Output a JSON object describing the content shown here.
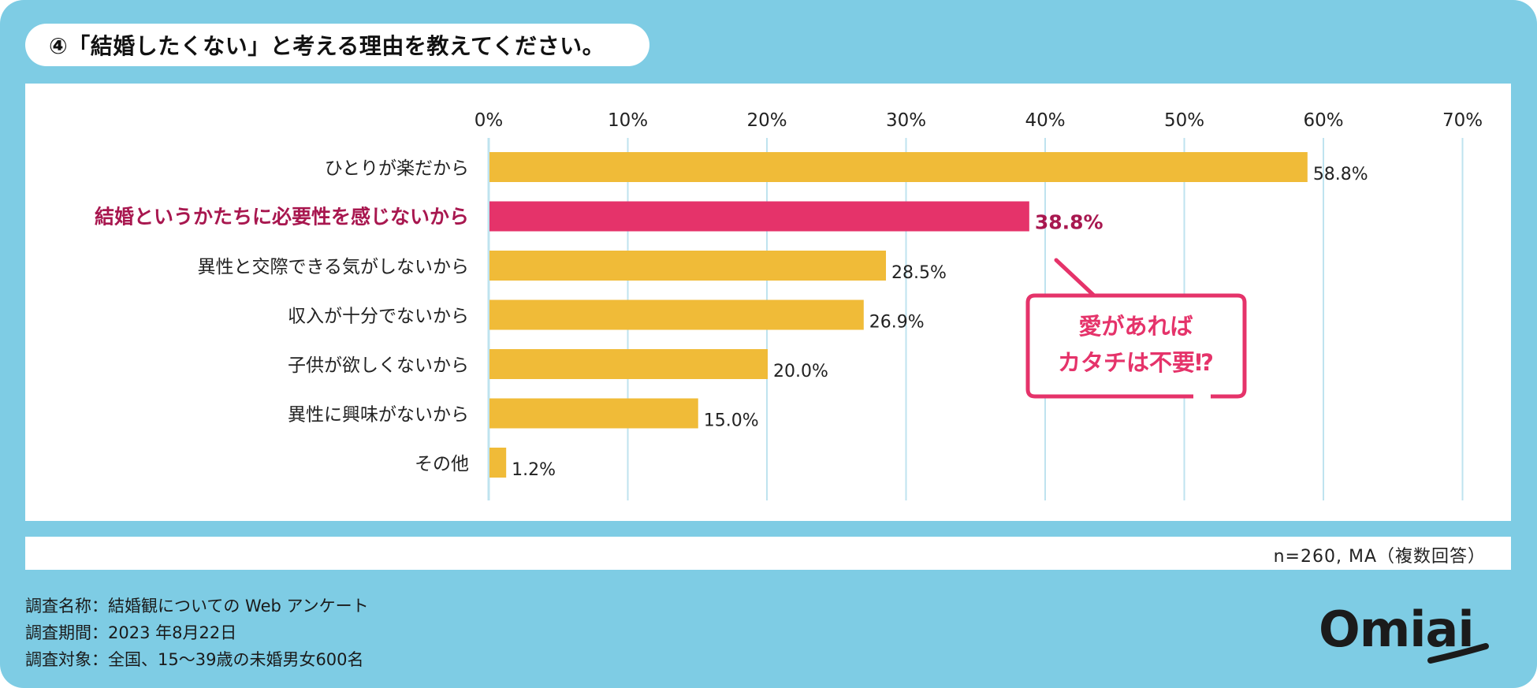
{
  "header": {
    "title": "④「結婚したくない」と考える理由を教えてください。"
  },
  "chart_data": {
    "type": "bar",
    "orientation": "horizontal",
    "title": "④「結婚したくない」と考える理由を教えてください。",
    "categories": [
      "ひとりが楽だから",
      "結婚というかたちに必要性を感じないから",
      "異性と交際できる気がしないから",
      "収入が十分でないから",
      "子供が欲しくないから",
      "異性に興味がないから",
      "その他"
    ],
    "values": [
      58.8,
      38.8,
      28.5,
      26.9,
      20.0,
      15.0,
      1.2
    ],
    "value_labels": [
      "58.8%",
      "38.8%",
      "28.5%",
      "26.9%",
      "20.0%",
      "15.0%",
      "1.2%"
    ],
    "highlight_index": 1,
    "xlim": [
      0,
      70
    ],
    "xticks": [
      "0%",
      "10%",
      "20%",
      "30%",
      "40%",
      "50%",
      "60%",
      "70%"
    ],
    "grid": true,
    "colors": {
      "bar": "#f0bb38",
      "highlight_bar": "#e5336a",
      "highlight_text": "#a8174f",
      "grid": "#bfe3ef"
    },
    "annotation": {
      "line1": "愛があれば",
      "line2": "カタチは不要⁉"
    }
  },
  "footer": {
    "sample_note": "n=260, MA（複数回答）",
    "survey_name": "調査名称：結婚観についての Web アンケート",
    "survey_period": "調査期間：2023 年8月22日",
    "survey_target": "調査対象：全国、15〜39歳の未婚男女600名"
  },
  "brand": {
    "logo_text": "Omiai",
    "color": "#1b1b1b"
  },
  "theme": {
    "frame": "#7ecce4",
    "callout": "#e5336a"
  }
}
